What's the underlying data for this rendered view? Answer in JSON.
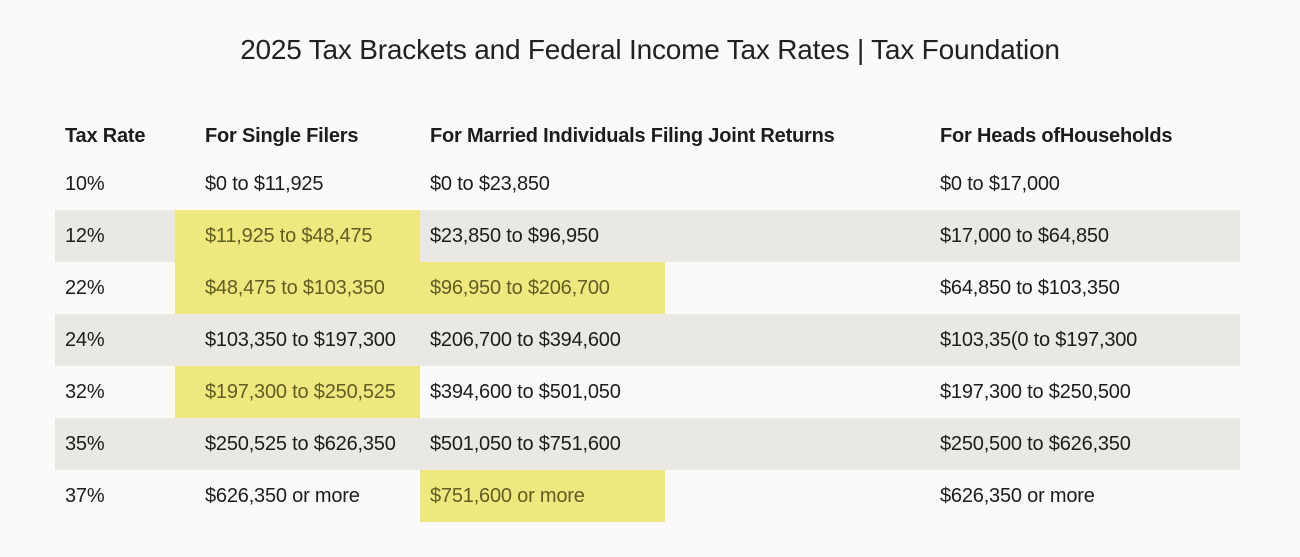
{
  "title": "2025 Tax Brackets and Federal Income Tax Rates | Tax Foundation",
  "table": {
    "columns": {
      "rate": "Tax Rate",
      "single": "For Single Filers",
      "married": "For Married Individuals Filing Joint Returns",
      "hoh": "For Heads ofHouseholds"
    },
    "rows": [
      {
        "rate": "10%",
        "single": "$0 to $11,925",
        "married": "$0 to $23,850",
        "hoh": "$0 to $17,000",
        "highlight": []
      },
      {
        "rate": "12%",
        "single": "$11,925 to $48,475",
        "married": "$23,850 to $96,950",
        "hoh": "$17,000 to $64,850",
        "highlight": [
          "single"
        ]
      },
      {
        "rate": "22%",
        "single": "$48,475 to $103,350",
        "married": "$96,950 to $206,700",
        "hoh": "$64,850 to $103,350",
        "highlight": [
          "single",
          "married"
        ]
      },
      {
        "rate": "24%",
        "single": "$103,350 to $197,300",
        "married": "$206,700 to $394,600",
        "hoh": "$103,35(0 to $197,300",
        "highlight": []
      },
      {
        "rate": "32%",
        "single": "$197,300 to $250,525",
        "married": "$394,600 to $501,050",
        "hoh": "$197,300 to $250,500",
        "highlight": [
          "single"
        ]
      },
      {
        "rate": "35%",
        "single": "$250,525 to $626,350",
        "married": "$501,050 to $751,600",
        "hoh": "$250,500 to $626,350",
        "highlight": []
      },
      {
        "rate": "37%",
        "single": "$626,350 or more",
        "married": "$751,600 or more",
        "hoh": "$626,350 or more",
        "highlight": [
          "married"
        ]
      }
    ],
    "colors": {
      "highlight": "#efe87e",
      "highlight_text": "#615d26",
      "stripe": "#e9e8e5",
      "divider": "#565553",
      "text": "#1d1c1b",
      "background": "#fbfaf8"
    }
  }
}
